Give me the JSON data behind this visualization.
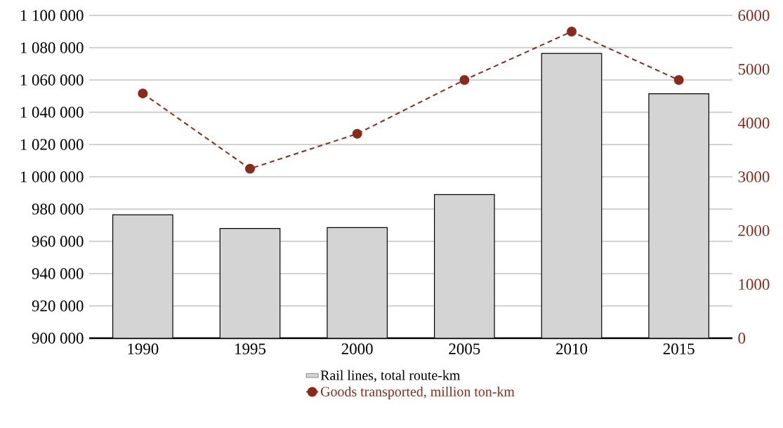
{
  "chart_data": {
    "type": "bar",
    "categories": [
      "1990",
      "1995",
      "2000",
      "2005",
      "2010",
      "2015"
    ],
    "series": [
      {
        "name": "Rail lines, total route-km",
        "color": "#d4d4d4",
        "values": [
          976500,
          968000,
          968500,
          989000,
          1076500,
          1051500
        ]
      },
      {
        "name": "Goods transported, million ton-km",
        "type": "line",
        "axis": "y2",
        "color": "#8b2a1a",
        "values": [
          4550,
          3150,
          3800,
          4800,
          5700,
          4800
        ]
      }
    ],
    "ylim": [
      900000,
      1100000
    ],
    "yticks": [
      {
        "value": 900000,
        "label": "900 000"
      },
      {
        "value": 920000,
        "label": "920 000"
      },
      {
        "value": 940000,
        "label": "940 000"
      },
      {
        "value": 960000,
        "label": "960 000"
      },
      {
        "value": 980000,
        "label": "980 000"
      },
      {
        "value": 1000000,
        "label": "1 000 000"
      },
      {
        "value": 1020000,
        "label": "1 020 000"
      },
      {
        "value": 1040000,
        "label": "1 040 000"
      },
      {
        "value": 1060000,
        "label": "1 060 000"
      },
      {
        "value": 1080000,
        "label": "1 080 000"
      },
      {
        "value": 1100000,
        "label": "1 100 000"
      }
    ],
    "y2lim": [
      0,
      6000
    ],
    "y2ticks": [
      0,
      1000,
      2000,
      3000,
      4000,
      5000,
      6000
    ],
    "grid": "y",
    "legend": "bottom",
    "marker": "circle",
    "line_style": "dashed"
  }
}
